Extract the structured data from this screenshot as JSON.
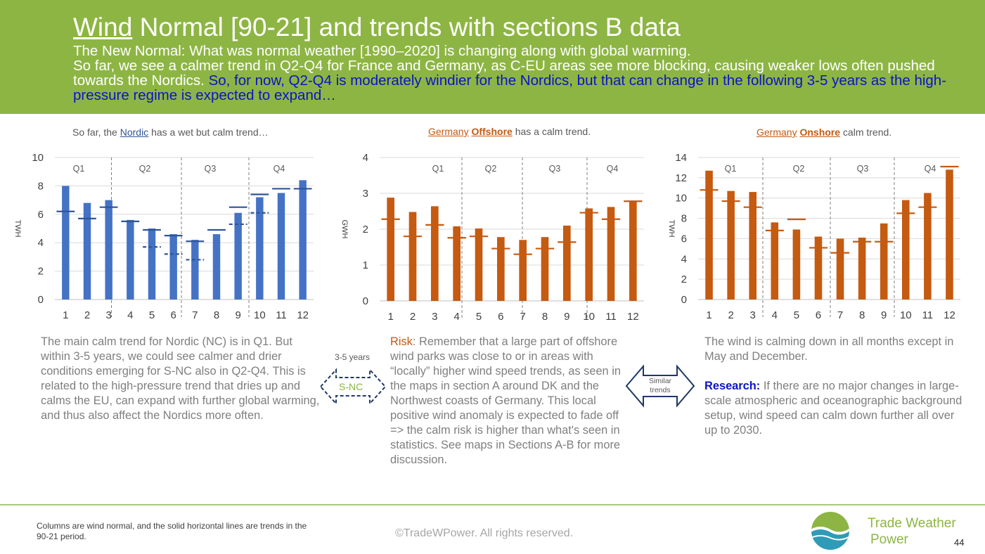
{
  "header": {
    "title_part1": "Wind",
    "title_part2": " Normal [90-21] and trends with sections B data",
    "subtitle_line1": "The New Normal: What was normal weather [1990–2020] is changing along with global warming.",
    "subtitle_line2a": "So far, we see a calmer trend in Q2-Q4 for France and Germany, as C-EU areas see more blocking, causing weaker lows often pushed towards the Nordics. ",
    "subtitle_line2b": "So, for now, Q2-Q4 is moderately windier for the Nordics, but that can change in the following 3-5 years as the high-pressure regime is expected to expand…",
    "colors": {
      "band": "#8db543",
      "highlight": "#0a14c8"
    }
  },
  "charts": {
    "nordic": {
      "title_pre": "So far, the ",
      "title_key": "Nordic",
      "title_post": " has a wet but calm trend…",
      "ylabel": "TWH",
      "color": "#4472c4",
      "yticks": [
        "0",
        "2",
        "4",
        "6",
        "8",
        "10"
      ],
      "xticks": [
        "1",
        "2",
        "3",
        "4",
        "5",
        "6",
        "7",
        "8",
        "9",
        "10",
        "11",
        "12"
      ],
      "quarters": [
        "Q1",
        "Q2",
        "Q3",
        "Q4"
      ]
    },
    "offshore": {
      "title_key1": "Germany",
      "title_key2": "Offshore",
      "title_post": " has a calm trend.",
      "ylabel": "GWH",
      "color": "#c55a11",
      "yticks": [
        "0",
        "1",
        "2",
        "3",
        "4"
      ],
      "xticks": [
        "1",
        "2",
        "3",
        "4",
        "5",
        "6",
        "7",
        "8",
        "9",
        "10",
        "11",
        "12"
      ],
      "quarters": [
        "Q1",
        "Q2",
        "Q3",
        "Q4"
      ]
    },
    "onshore": {
      "title_key1": "Germany",
      "title_key2": "Onshore",
      "title_post": " calm trend.",
      "ylabel": "TWH",
      "color": "#c55a11",
      "yticks": [
        "0",
        "2",
        "4",
        "6",
        "8",
        "10",
        "12",
        "14"
      ],
      "xticks": [
        "1",
        "2",
        "3",
        "4",
        "5",
        "6",
        "7",
        "8",
        "9",
        "10",
        "11",
        "12"
      ],
      "quarters": [
        "Q1",
        "Q2",
        "Q3",
        "Q4"
      ]
    }
  },
  "chart_data": [
    {
      "type": "bar",
      "categories": [
        "1",
        "2",
        "3",
        "4",
        "5",
        "6",
        "7",
        "8",
        "9",
        "10",
        "11",
        "12"
      ],
      "series": [
        {
          "values": [
            8.0,
            6.8,
            7.0,
            5.6,
            5.0,
            4.6,
            4.2,
            4.6,
            6.1,
            7.2,
            7.5,
            8.4
          ]
        },
        {
          "values": [
            6.2,
            5.7,
            6.5,
            5.5,
            4.9,
            4.5,
            4.1,
            4.9,
            6.5,
            7.4,
            7.8,
            7.8
          ]
        },
        {
          "values": [
            null,
            null,
            null,
            null,
            3.7,
            3.2,
            2.8,
            null,
            5.3,
            6.1,
            null,
            null
          ]
        }
      ],
      "ylabel": "TWH",
      "ylim": [
        0,
        10
      ]
    },
    {
      "type": "bar",
      "categories": [
        "1",
        "2",
        "3",
        "4",
        "5",
        "6",
        "7",
        "8",
        "9",
        "10",
        "11",
        "12"
      ],
      "series": [
        {
          "values": [
            2.88,
            2.48,
            2.64,
            2.08,
            2.02,
            1.78,
            1.7,
            1.78,
            2.1,
            2.58,
            2.62,
            2.78
          ]
        },
        {
          "values": [
            2.28,
            1.8,
            2.12,
            1.76,
            1.8,
            1.46,
            1.3,
            1.46,
            1.64,
            2.46,
            2.28,
            2.78
          ]
        }
      ],
      "ylabel": "GWH",
      "ylim": [
        0,
        4
      ]
    },
    {
      "type": "bar",
      "categories": [
        "1",
        "2",
        "3",
        "4",
        "5",
        "6",
        "7",
        "8",
        "9",
        "10",
        "11",
        "12"
      ],
      "series": [
        {
          "values": [
            12.7,
            10.7,
            10.6,
            7.6,
            6.9,
            6.2,
            6.0,
            6.1,
            7.5,
            9.8,
            10.5,
            12.8
          ]
        },
        {
          "values": [
            10.8,
            9.7,
            9.1,
            6.8,
            7.9,
            5.1,
            4.6,
            5.7,
            5.7,
            8.5,
            9.1,
            13.1
          ]
        }
      ],
      "ylabel": "TWH",
      "ylim": [
        0,
        14
      ]
    }
  ],
  "text": {
    "nordic_desc": "The main calm trend for Nordic (NC) is in Q1. But within 3-5 years, we could see calmer and drier conditions emerging for S-NC also in Q2-Q4. This is related to the high-pressure trend that dries up and calms the EU, can expand with further global warming, and thus also affect the Nordics more often.",
    "risk_label": "Risk",
    "risk_desc": ": Remember that a large part of offshore wind parks was close to or in areas with “locally” higher wind speed trends, as seen in the maps in section A around DK and the Northwest coasts of Germany. This local positive wind anomaly is expected to fade off => the calm risk is higher than what's seen in statistics. See maps in Sections A-B for more discussion.",
    "onshore_desc": "The wind is calming down in all months except in May and December.",
    "research_label": "Research:",
    "research_desc": " If there are no major changes in large-scale atmospheric and oceanographic background setup, wind speed can calm down further all over up to 2030.",
    "arrow1_top": "3-5 years",
    "arrow1_label": "S-NC",
    "arrow2_label_l1": "Similar",
    "arrow2_label_l2": "trends"
  },
  "footer": {
    "note": "Columns are wind normal, and the solid horizontal lines are trends in the 90-21 period.",
    "copyright": "©TradeWPower. All rights reserved.",
    "brand_l1": "Trade Weather",
    "brand_l2": "Power",
    "page": "44"
  }
}
